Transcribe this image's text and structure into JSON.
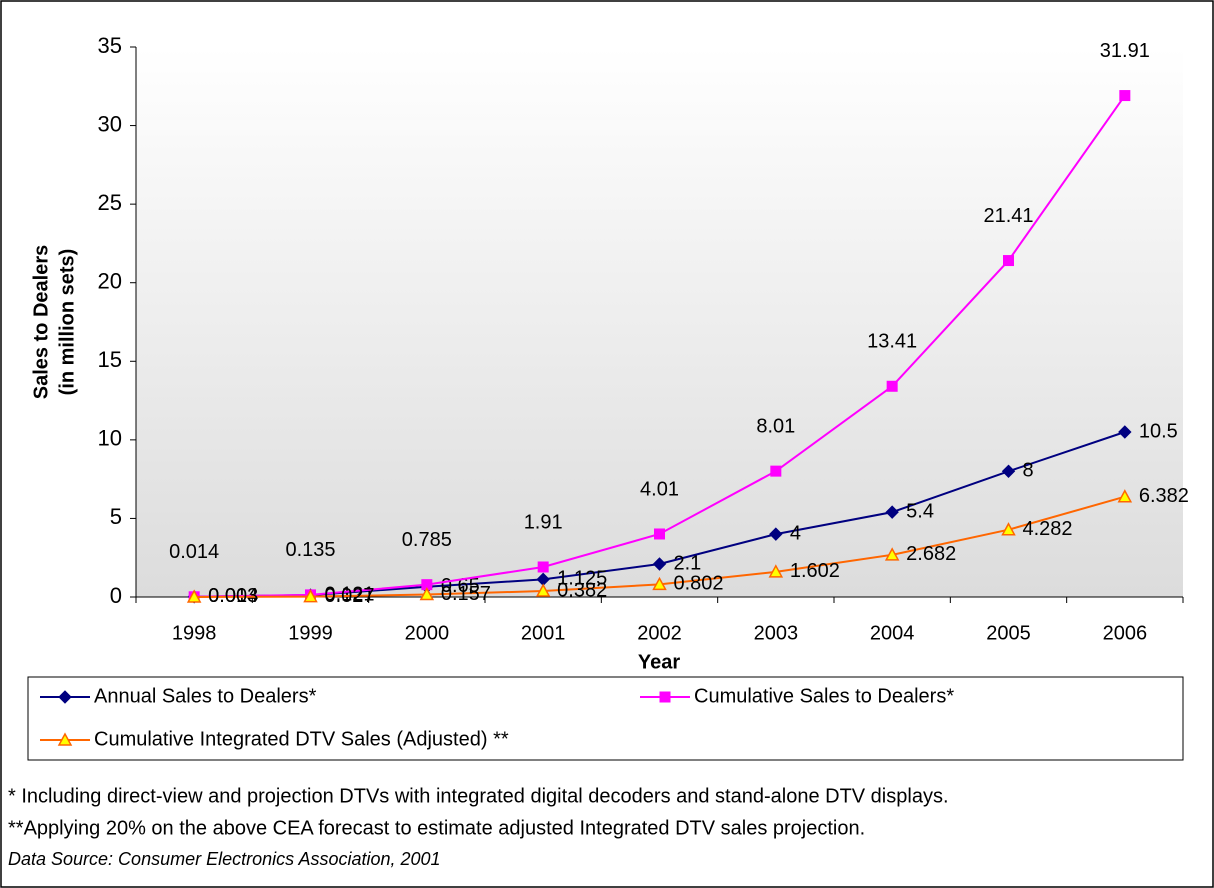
{
  "chart_data": {
    "type": "line",
    "categories": [
      "1998",
      "1999",
      "2000",
      "2001",
      "2002",
      "2003",
      "2004",
      "2005",
      "2006"
    ],
    "series": [
      {
        "name": "Annual Sales to Dealers*",
        "color": "#000080",
        "marker": "diamond",
        "values": [
          0.014,
          0.121,
          0.65,
          1.125,
          2.1,
          4,
          5.4,
          8,
          10.5
        ]
      },
      {
        "name": "Cumulative Sales to Dealers*",
        "color": "#ff00ff",
        "marker": "square",
        "values": [
          0.014,
          0.135,
          0.785,
          1.91,
          4.01,
          8.01,
          13.41,
          21.41,
          31.91
        ]
      },
      {
        "name": "Cumulative Integrated DTV Sales (Adjusted) **",
        "color": "#ff6600",
        "marker": "triangle",
        "values": [
          0.003,
          0.027,
          0.157,
          0.382,
          0.802,
          1.602,
          2.682,
          4.282,
          6.382
        ]
      }
    ],
    "ylim": [
      0,
      35
    ],
    "yticks": [
      0,
      5,
      10,
      15,
      20,
      25,
      30,
      35
    ],
    "xlabel": "Year",
    "ylabel": [
      "Sales to Dealers",
      "(in million sets)"
    ],
    "notes": [
      "* Including direct-view and projection DTVs with integrated digital decoders and stand-alone DTV displays.",
      "**Applying 20% on the above CEA forecast to estimate adjusted Integrated DTV sales projection."
    ],
    "source": "Data Source:  Consumer Electronics Association, 2001"
  }
}
